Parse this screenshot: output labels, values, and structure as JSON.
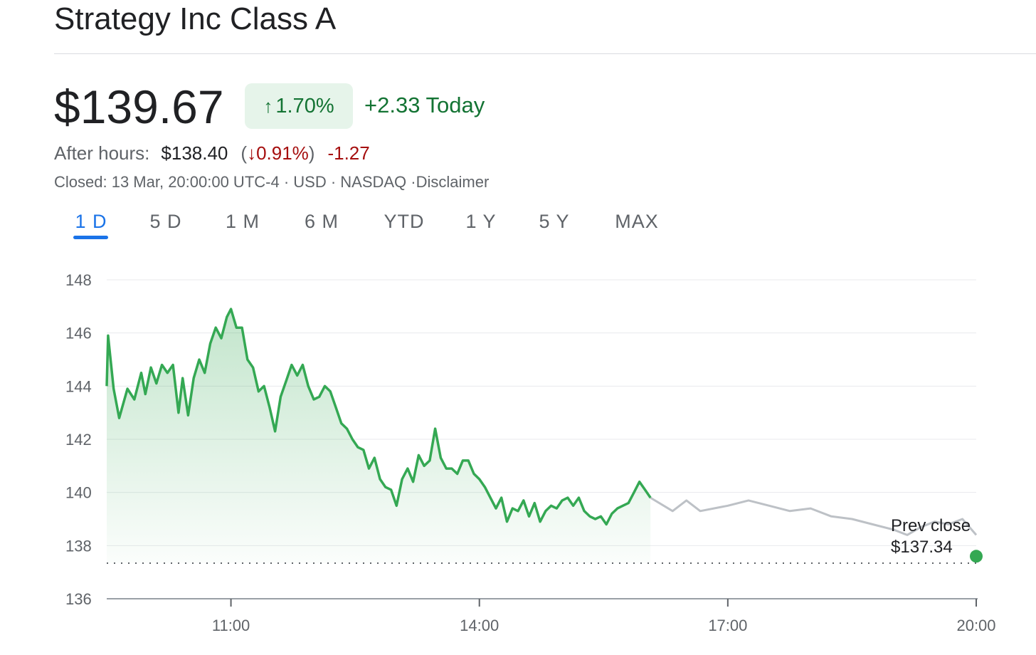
{
  "header": {
    "title": "Strategy Inc Class A",
    "price": "$139.67",
    "change_pct": "1.70%",
    "change_today": "+2.33 Today",
    "after_hours_label": "After hours:",
    "after_hours_price": "$138.40",
    "after_hours_pct": "0.91%",
    "after_hours_change": "-1.27",
    "status_text": "Closed: 13 Mar, 20:00:00 UTC-4 · USD · NASDAQ · ",
    "disclaimer_link": "Disclaimer"
  },
  "tabs": [
    {
      "label": "1 D",
      "active": true
    },
    {
      "label": "5 D",
      "active": false
    },
    {
      "label": "1 M",
      "active": false
    },
    {
      "label": "6 M",
      "active": false
    },
    {
      "label": "YTD",
      "active": false
    },
    {
      "label": "1 Y",
      "active": false
    },
    {
      "label": "5 Y",
      "active": false
    },
    {
      "label": "MAX",
      "active": false
    }
  ],
  "colors": {
    "up": "#34a853",
    "up_text": "#137333",
    "down_text": "#a50e0e",
    "after_hours_line": "#bdc1c6",
    "grid": "#e8eaed",
    "accent": "#1a73e8"
  },
  "chart_data": {
    "type": "area",
    "ylim": [
      136,
      148
    ],
    "y_ticks": [
      136,
      138,
      140,
      142,
      144,
      146,
      148
    ],
    "x_ticks": [
      "11:00",
      "14:00",
      "17:00",
      "20:00"
    ],
    "x_range": [
      "09:30",
      "20:00"
    ],
    "grid": true,
    "prev_close": {
      "label": "Prev close",
      "value_label": "$137.34",
      "value": 137.34
    },
    "series": [
      {
        "session": "regular",
        "points": [
          [
            "09:30",
            144.0
          ],
          [
            "09:31",
            145.9
          ],
          [
            "09:35",
            143.9
          ],
          [
            "09:39",
            142.8
          ],
          [
            "09:45",
            143.9
          ],
          [
            "09:50",
            143.5
          ],
          [
            "09:55",
            144.5
          ],
          [
            "09:58",
            143.7
          ],
          [
            "10:02",
            144.7
          ],
          [
            "10:06",
            144.1
          ],
          [
            "10:10",
            144.8
          ],
          [
            "10:14",
            144.5
          ],
          [
            "10:18",
            144.8
          ],
          [
            "10:22",
            143.0
          ],
          [
            "10:25",
            144.3
          ],
          [
            "10:29",
            142.9
          ],
          [
            "10:33",
            144.3
          ],
          [
            "10:37",
            145.0
          ],
          [
            "10:41",
            144.5
          ],
          [
            "10:45",
            145.6
          ],
          [
            "10:49",
            146.2
          ],
          [
            "10:53",
            145.8
          ],
          [
            "10:57",
            146.6
          ],
          [
            "11:00",
            146.9
          ],
          [
            "11:04",
            146.2
          ],
          [
            "11:08",
            146.2
          ],
          [
            "11:12",
            145.0
          ],
          [
            "11:16",
            144.7
          ],
          [
            "11:20",
            143.8
          ],
          [
            "11:24",
            144.0
          ],
          [
            "11:28",
            143.2
          ],
          [
            "11:32",
            142.3
          ],
          [
            "11:36",
            143.6
          ],
          [
            "11:40",
            144.2
          ],
          [
            "11:44",
            144.8
          ],
          [
            "11:48",
            144.4
          ],
          [
            "11:52",
            144.8
          ],
          [
            "11:56",
            144.0
          ],
          [
            "12:00",
            143.5
          ],
          [
            "12:04",
            143.6
          ],
          [
            "12:08",
            144.0
          ],
          [
            "12:12",
            143.8
          ],
          [
            "12:16",
            143.2
          ],
          [
            "12:20",
            142.6
          ],
          [
            "12:24",
            142.4
          ],
          [
            "12:28",
            142.0
          ],
          [
            "12:32",
            141.7
          ],
          [
            "12:36",
            141.6
          ],
          [
            "12:40",
            140.9
          ],
          [
            "12:44",
            141.3
          ],
          [
            "12:48",
            140.5
          ],
          [
            "12:52",
            140.2
          ],
          [
            "12:56",
            140.1
          ],
          [
            "13:00",
            139.5
          ],
          [
            "13:04",
            140.5
          ],
          [
            "13:08",
            140.9
          ],
          [
            "13:12",
            140.4
          ],
          [
            "13:16",
            141.4
          ],
          [
            "13:20",
            141.0
          ],
          [
            "13:24",
            141.2
          ],
          [
            "13:28",
            142.4
          ],
          [
            "13:32",
            141.3
          ],
          [
            "13:36",
            140.9
          ],
          [
            "13:40",
            140.9
          ],
          [
            "13:44",
            140.7
          ],
          [
            "13:48",
            141.2
          ],
          [
            "13:52",
            141.2
          ],
          [
            "13:56",
            140.7
          ],
          [
            "14:00",
            140.5
          ],
          [
            "14:04",
            140.2
          ],
          [
            "14:08",
            139.8
          ],
          [
            "14:12",
            139.4
          ],
          [
            "14:16",
            139.8
          ],
          [
            "14:20",
            138.9
          ],
          [
            "14:24",
            139.4
          ],
          [
            "14:28",
            139.3
          ],
          [
            "14:32",
            139.7
          ],
          [
            "14:36",
            139.1
          ],
          [
            "14:40",
            139.6
          ],
          [
            "14:44",
            138.9
          ],
          [
            "14:48",
            139.3
          ],
          [
            "14:52",
            139.5
          ],
          [
            "14:56",
            139.4
          ],
          [
            "15:00",
            139.7
          ],
          [
            "15:04",
            139.8
          ],
          [
            "15:08",
            139.5
          ],
          [
            "15:12",
            139.8
          ],
          [
            "15:16",
            139.3
          ],
          [
            "15:20",
            139.1
          ],
          [
            "15:24",
            139.0
          ],
          [
            "15:28",
            139.1
          ],
          [
            "15:32",
            138.8
          ],
          [
            "15:36",
            139.2
          ],
          [
            "15:40",
            139.4
          ],
          [
            "15:44",
            139.5
          ],
          [
            "15:48",
            139.6
          ],
          [
            "15:52",
            140.0
          ],
          [
            "15:56",
            140.4
          ],
          [
            "16:00",
            140.1
          ],
          [
            "16:04",
            139.8
          ]
        ]
      },
      {
        "session": "after_hours",
        "points": [
          [
            "16:04",
            139.8
          ],
          [
            "16:20",
            139.3
          ],
          [
            "16:30",
            139.7
          ],
          [
            "16:40",
            139.3
          ],
          [
            "17:00",
            139.5
          ],
          [
            "17:15",
            139.7
          ],
          [
            "17:30",
            139.5
          ],
          [
            "17:45",
            139.3
          ],
          [
            "18:00",
            139.4
          ],
          [
            "18:15",
            139.1
          ],
          [
            "18:30",
            139.0
          ],
          [
            "18:45",
            138.8
          ],
          [
            "19:00",
            138.6
          ],
          [
            "19:10",
            138.4
          ],
          [
            "19:20",
            138.7
          ],
          [
            "19:30",
            138.9
          ],
          [
            "19:40",
            138.8
          ],
          [
            "19:50",
            139.0
          ],
          [
            "20:00",
            138.4
          ]
        ]
      }
    ]
  }
}
